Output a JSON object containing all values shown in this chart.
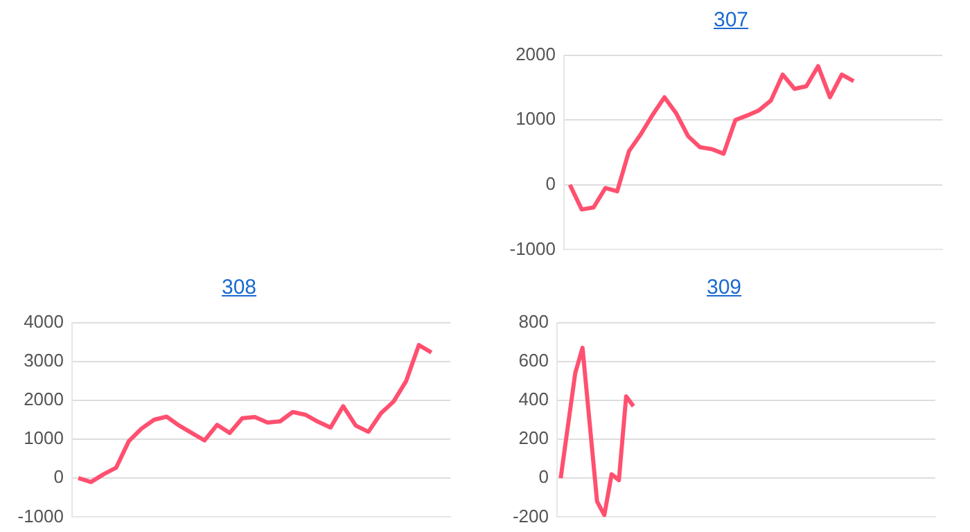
{
  "chart_data": [
    {
      "type": "line",
      "title": "307",
      "categories": [
        null,
        null,
        null,
        null,
        null,
        null,
        null,
        null,
        null,
        null,
        null,
        null,
        null,
        null,
        null,
        null,
        null,
        null,
        null,
        null,
        null,
        null,
        null,
        null,
        null,
        null,
        null,
        null,
        null,
        null,
        null,
        null
      ],
      "series": [
        {
          "color": "#ff5070",
          "values": [
            0,
            -380,
            -350,
            -50,
            -100,
            520,
            780,
            1080,
            1350,
            1100,
            750,
            580,
            550,
            480,
            1000,
            1070,
            1150,
            1300,
            1700,
            1480,
            1520,
            1830,
            1350,
            1700,
            1600,
            null,
            null,
            null,
            null,
            null,
            null,
            null
          ]
        }
      ],
      "ylim": [
        -1000,
        2000
      ],
      "yticks": [
        -1000,
        0,
        1000,
        2000
      ],
      "grid": "y",
      "tick_labels": "y",
      "marker": "none"
    },
    {
      "type": "line",
      "title": "308",
      "categories": [
        null,
        null,
        null,
        null,
        null,
        null,
        null,
        null,
        null,
        null,
        null,
        null,
        null,
        null,
        null,
        null,
        null,
        null,
        null,
        null,
        null,
        null,
        null,
        null,
        null,
        null,
        null,
        null,
        null,
        null
      ],
      "series": [
        {
          "color": "#ff5070",
          "values": [
            0,
            -100,
            100,
            270,
            950,
            1270,
            1500,
            1580,
            1350,
            1160,
            970,
            1370,
            1160,
            1540,
            1570,
            1430,
            1460,
            1700,
            1630,
            1450,
            1300,
            1850,
            1350,
            1190,
            1670,
            1970,
            2500,
            3420,
            3230,
            null
          ]
        }
      ],
      "ylim": [
        -1000,
        4000
      ],
      "yticks": [
        -1000,
        0,
        1000,
        2000,
        3000,
        4000
      ],
      "grid": "y",
      "tick_labels": "y",
      "marker": "none"
    },
    {
      "type": "line",
      "title": "309",
      "categories": [
        null,
        null,
        null,
        null,
        null,
        null,
        null,
        null,
        null,
        null,
        null,
        null,
        null,
        null,
        null,
        null,
        null,
        null,
        null,
        null,
        null,
        null,
        null,
        null,
        null,
        null,
        null,
        null,
        null,
        null,
        null,
        null,
        null,
        null,
        null,
        null,
        null,
        null,
        null,
        null,
        null,
        null,
        null,
        null,
        null,
        null,
        null,
        null,
        null,
        null,
        null,
        null
      ],
      "series": [
        {
          "color": "#ff5070",
          "values": [
            0,
            270,
            540,
            670,
            275,
            -120,
            -190,
            20,
            -10,
            420,
            370,
            null,
            null,
            null,
            null,
            null,
            null,
            null,
            null,
            null,
            null,
            null,
            null,
            null,
            null,
            null,
            null,
            null,
            null,
            null,
            null,
            null,
            null,
            null,
            null,
            null,
            null,
            null,
            null,
            null,
            null,
            null,
            null,
            null,
            null,
            null,
            null,
            null,
            null,
            null,
            null,
            null
          ]
        }
      ],
      "ylim": [
        -200,
        800
      ],
      "yticks": [
        -200,
        0,
        200,
        400,
        600,
        800
      ],
      "grid": "y",
      "tick_labels": "y",
      "marker": "none"
    }
  ]
}
